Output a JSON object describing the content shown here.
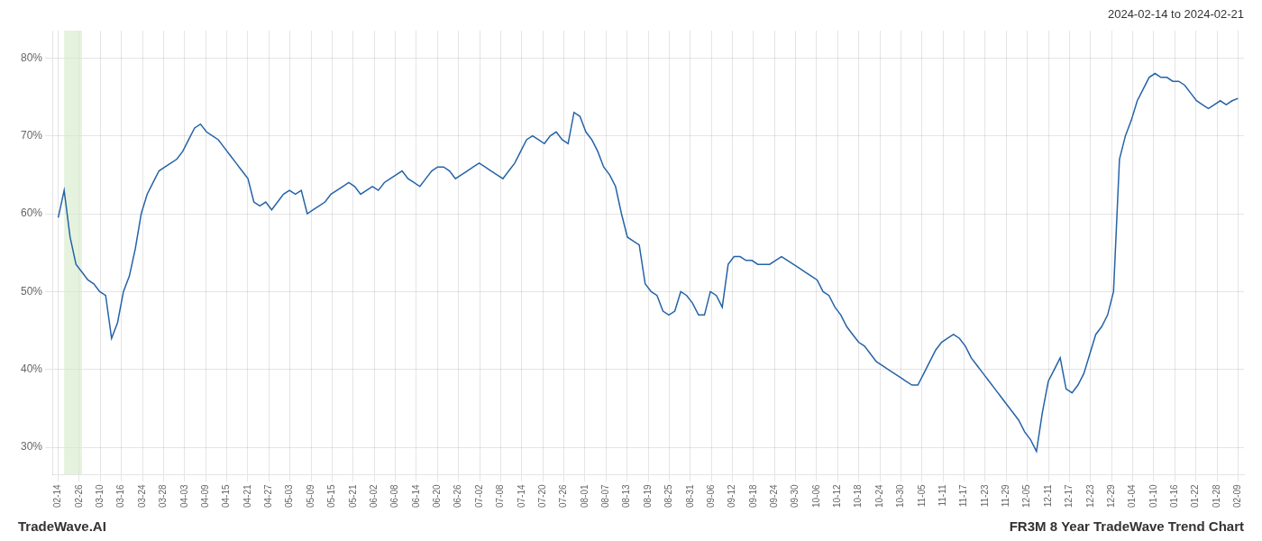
{
  "chart_data": {
    "type": "line",
    "title": "FR3M 8 Year TradeWave Trend Chart",
    "subtitle": "2024-02-14 to 2024-02-21",
    "annotations": [
      "TradeWave.AI"
    ],
    "color": "#2563a8",
    "grid": true,
    "highlight": {
      "x": [
        1,
        4
      ],
      "color": "#d4eac8"
    },
    "xlim": [
      -1,
      200
    ],
    "xticks": [
      {
        "value": 0,
        "label": "02-14"
      },
      {
        "value": 3.5536,
        "label": "02-26"
      },
      {
        "value": 7.1071,
        "label": "03-10"
      },
      {
        "value": 10.6607,
        "label": "03-16"
      },
      {
        "value": 14.2143,
        "label": "03-24"
      },
      {
        "value": 17.7679,
        "label": "03-28"
      },
      {
        "value": 21.3214,
        "label": "04-03"
      },
      {
        "value": 24.875,
        "label": "04-09"
      },
      {
        "value": 28.4286,
        "label": "04-15"
      },
      {
        "value": 31.9821,
        "label": "04-21"
      },
      {
        "value": 35.5357,
        "label": "04-27"
      },
      {
        "value": 39.0893,
        "label": "05-03"
      },
      {
        "value": 42.6429,
        "label": "05-09"
      },
      {
        "value": 46.1964,
        "label": "05-15"
      },
      {
        "value": 49.75,
        "label": "05-21"
      },
      {
        "value": 53.3036,
        "label": "06-02"
      },
      {
        "value": 56.8571,
        "label": "06-08"
      },
      {
        "value": 60.4107,
        "label": "06-14"
      },
      {
        "value": 63.9643,
        "label": "06-20"
      },
      {
        "value": 67.5179,
        "label": "06-26"
      },
      {
        "value": 71.0714,
        "label": "07-02"
      },
      {
        "value": 74.625,
        "label": "07-08"
      },
      {
        "value": 78.1786,
        "label": "07-14"
      },
      {
        "value": 81.7321,
        "label": "07-20"
      },
      {
        "value": 85.2857,
        "label": "07-26"
      },
      {
        "value": 88.8393,
        "label": "08-01"
      },
      {
        "value": 92.3929,
        "label": "08-07"
      },
      {
        "value": 95.9464,
        "label": "08-13"
      },
      {
        "value": 99.5,
        "label": "08-19"
      },
      {
        "value": 103.0536,
        "label": "08-25"
      },
      {
        "value": 106.6071,
        "label": "08-31"
      },
      {
        "value": 110.1607,
        "label": "09-06"
      },
      {
        "value": 113.7143,
        "label": "09-12"
      },
      {
        "value": 117.2679,
        "label": "09-18"
      },
      {
        "value": 120.8214,
        "label": "09-24"
      },
      {
        "value": 124.375,
        "label": "09-30"
      },
      {
        "value": 127.9286,
        "label": "10-06"
      },
      {
        "value": 131.4821,
        "label": "10-12"
      },
      {
        "value": 135.0357,
        "label": "10-18"
      },
      {
        "value": 138.5893,
        "label": "10-24"
      },
      {
        "value": 142.1429,
        "label": "10-30"
      },
      {
        "value": 145.6964,
        "label": "11-05"
      },
      {
        "value": 149.25,
        "label": "11-11"
      },
      {
        "value": 152.8036,
        "label": "11-17"
      },
      {
        "value": 156.3571,
        "label": "11-23"
      },
      {
        "value": 159.9107,
        "label": "11-29"
      },
      {
        "value": 163.4643,
        "label": "12-05"
      },
      {
        "value": 167.0179,
        "label": "12-11"
      },
      {
        "value": 170.5714,
        "label": "12-17"
      },
      {
        "value": 174.125,
        "label": "12-23"
      },
      {
        "value": 177.6786,
        "label": "12-29"
      },
      {
        "value": 181.2321,
        "label": "01-04"
      },
      {
        "value": 184.7857,
        "label": "01-10"
      },
      {
        "value": 188.3393,
        "label": "01-16"
      },
      {
        "value": 191.8929,
        "label": "01-22"
      },
      {
        "value": 195.4464,
        "label": "01-28"
      },
      {
        "value": 199,
        "label": "02-09"
      }
    ],
    "ylim": [
      0.265,
      0.835
    ],
    "yticks": [
      {
        "value": 0.3,
        "label": "30%"
      },
      {
        "value": 0.4,
        "label": "40%"
      },
      {
        "value": 0.5,
        "label": "50%"
      },
      {
        "value": 0.6,
        "label": "60%"
      },
      {
        "value": 0.7,
        "label": "70%"
      },
      {
        "value": 0.8,
        "label": "80%"
      }
    ],
    "x": [
      0,
      1,
      2,
      3,
      4,
      5,
      6,
      7,
      8,
      9,
      10,
      11,
      12,
      13,
      14,
      15,
      16,
      17,
      18,
      19,
      20,
      21,
      22,
      23,
      24,
      25,
      26,
      27,
      28,
      29,
      30,
      31,
      32,
      33,
      34,
      35,
      36,
      37,
      38,
      39,
      40,
      41,
      42,
      43,
      44,
      45,
      46,
      47,
      48,
      49,
      50,
      51,
      52,
      53,
      54,
      55,
      56,
      57,
      58,
      59,
      60,
      61,
      62,
      63,
      64,
      65,
      66,
      67,
      68,
      69,
      70,
      71,
      72,
      73,
      74,
      75,
      76,
      77,
      78,
      79,
      80,
      81,
      82,
      83,
      84,
      85,
      86,
      87,
      88,
      89,
      90,
      91,
      92,
      93,
      94,
      95,
      96,
      97,
      98,
      99,
      100,
      101,
      102,
      103,
      104,
      105,
      106,
      107,
      108,
      109,
      110,
      111,
      112,
      113,
      114,
      115,
      116,
      117,
      118,
      119,
      120,
      121,
      122,
      123,
      124,
      125,
      126,
      127,
      128,
      129,
      130,
      131,
      132,
      133,
      134,
      135,
      136,
      137,
      138,
      139,
      140,
      141,
      142,
      143,
      144,
      145,
      146,
      147,
      148,
      149,
      150,
      151,
      152,
      153,
      154,
      155,
      156,
      157,
      158,
      159,
      160,
      161,
      162,
      163,
      164,
      165,
      166,
      167,
      168,
      169,
      170,
      171,
      172,
      173,
      174,
      175,
      176,
      177,
      178,
      179,
      180,
      181,
      182,
      183,
      184,
      185,
      186,
      187,
      188,
      189,
      190,
      191,
      192,
      193,
      194,
      195,
      196,
      197,
      198,
      199
    ],
    "values": [
      0.595,
      0.63,
      0.57,
      0.535,
      0.525,
      0.515,
      0.51,
      0.5,
      0.495,
      0.44,
      0.46,
      0.5,
      0.52,
      0.555,
      0.6,
      0.625,
      0.64,
      0.655,
      0.66,
      0.665,
      0.67,
      0.68,
      0.695,
      0.71,
      0.715,
      0.705,
      0.7,
      0.695,
      0.685,
      0.675,
      0.665,
      0.655,
      0.645,
      0.615,
      0.61,
      0.615,
      0.605,
      0.615,
      0.625,
      0.63,
      0.625,
      0.63,
      0.6,
      0.605,
      0.61,
      0.615,
      0.625,
      0.63,
      0.635,
      0.64,
      0.635,
      0.625,
      0.63,
      0.635,
      0.63,
      0.64,
      0.645,
      0.65,
      0.655,
      0.645,
      0.64,
      0.635,
      0.645,
      0.655,
      0.66,
      0.66,
      0.655,
      0.645,
      0.65,
      0.655,
      0.66,
      0.665,
      0.66,
      0.655,
      0.65,
      0.645,
      0.655,
      0.665,
      0.68,
      0.695,
      0.7,
      0.695,
      0.69,
      0.7,
      0.705,
      0.695,
      0.69,
      0.73,
      0.725,
      0.705,
      0.695,
      0.68,
      0.66,
      0.65,
      0.635,
      0.6,
      0.57,
      0.565,
      0.56,
      0.51,
      0.5,
      0.495,
      0.475,
      0.47,
      0.475,
      0.5,
      0.495,
      0.485,
      0.47,
      0.47,
      0.5,
      0.495,
      0.48,
      0.535,
      0.545,
      0.545,
      0.54,
      0.54,
      0.535,
      0.535,
      0.535,
      0.54,
      0.545,
      0.54,
      0.535,
      0.53,
      0.525,
      0.52,
      0.515,
      0.5,
      0.495,
      0.48,
      0.47,
      0.455,
      0.445,
      0.435,
      0.43,
      0.42,
      0.41,
      0.405,
      0.4,
      0.395,
      0.39,
      0.385,
      0.38,
      0.38,
      0.395,
      0.41,
      0.425,
      0.435,
      0.44,
      0.445,
      0.44,
      0.43,
      0.415,
      0.405,
      0.395,
      0.385,
      0.375,
      0.365,
      0.355,
      0.345,
      0.335,
      0.32,
      0.31,
      0.295,
      0.345,
      0.385,
      0.4,
      0.415,
      0.375,
      0.37,
      0.38,
      0.395,
      0.42,
      0.445,
      0.455,
      0.47,
      0.5,
      0.67,
      0.7,
      0.72,
      0.745,
      0.76,
      0.775,
      0.78,
      0.775,
      0.775,
      0.77,
      0.77,
      0.765,
      0.755,
      0.745,
      0.74,
      0.735,
      0.74,
      0.745,
      0.74,
      0.745,
      0.748
    ]
  }
}
